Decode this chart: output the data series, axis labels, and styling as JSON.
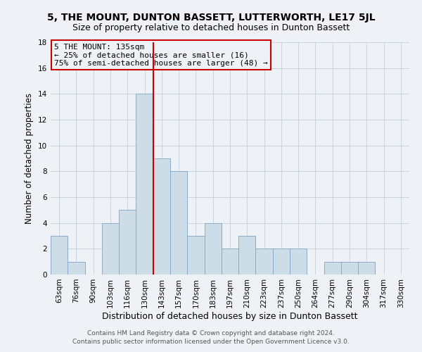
{
  "title": "5, THE MOUNT, DUNTON BASSETT, LUTTERWORTH, LE17 5JL",
  "subtitle": "Size of property relative to detached houses in Dunton Bassett",
  "xlabel": "Distribution of detached houses by size in Dunton Bassett",
  "ylabel": "Number of detached properties",
  "bin_labels": [
    "63sqm",
    "76sqm",
    "90sqm",
    "103sqm",
    "116sqm",
    "130sqm",
    "143sqm",
    "157sqm",
    "170sqm",
    "183sqm",
    "197sqm",
    "210sqm",
    "223sqm",
    "237sqm",
    "250sqm",
    "264sqm",
    "277sqm",
    "290sqm",
    "304sqm",
    "317sqm",
    "330sqm"
  ],
  "bar_heights": [
    3,
    1,
    0,
    4,
    5,
    14,
    9,
    8,
    3,
    4,
    2,
    3,
    2,
    2,
    2,
    0,
    1,
    1,
    1,
    0,
    0
  ],
  "bar_color": "#ccdde8",
  "bar_edgecolor": "#8aabcc",
  "grid_color": "#c8d4de",
  "vline_x_index": 5,
  "vline_color": "#cc0000",
  "annotation_box_text": "5 THE MOUNT: 135sqm\n← 25% of detached houses are smaller (16)\n75% of semi-detached houses are larger (48) →",
  "annotation_box_edgecolor": "#cc0000",
  "ylim": [
    0,
    18
  ],
  "yticks": [
    0,
    2,
    4,
    6,
    8,
    10,
    12,
    14,
    16,
    18
  ],
  "footer_line1": "Contains HM Land Registry data © Crown copyright and database right 2024.",
  "footer_line2": "Contains public sector information licensed under the Open Government Licence v3.0.",
  "background_color": "#eef2f6",
  "title_fontsize": 10,
  "subtitle_fontsize": 9,
  "xlabel_fontsize": 9,
  "ylabel_fontsize": 8.5,
  "tick_fontsize": 7.5,
  "annotation_fontsize": 8,
  "footer_fontsize": 6.5
}
